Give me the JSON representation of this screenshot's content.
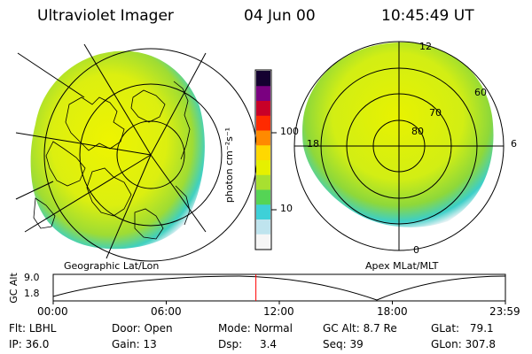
{
  "header": {
    "title": "Ultraviolet Imager",
    "date": "04 Jun 00",
    "time": "10:45:49 UT"
  },
  "colorbar": {
    "unit_label": "photon cm⁻²s⁻¹",
    "ticks": [
      "100",
      "10"
    ],
    "scale": "log",
    "colors": [
      "#f6f6f6",
      "#bfe4ee",
      "#3ed0d8",
      "#55d455",
      "#a8e030",
      "#e6f000",
      "#ffd800",
      "#ff8a00",
      "#ff2a00",
      "#c80028",
      "#7a0080",
      "#140030"
    ]
  },
  "left_panel": {
    "caption": "Geographic Lat/Lon"
  },
  "right_panel": {
    "caption": "Apex MLat/MLT",
    "lat_labels": [
      "80",
      "70",
      "60"
    ],
    "mlt_labels": [
      "12",
      "18",
      "6",
      "0"
    ]
  },
  "timeline": {
    "axis_label": "GC Alt",
    "y_ticks": [
      "9.0",
      "1.8"
    ],
    "x_ticks": [
      "00:00",
      "06:00",
      "12:00",
      "18:00",
      "23:59"
    ],
    "marker_time": "10:45",
    "marker_color": "#ff0000"
  },
  "status": {
    "filter": {
      "label": "Flt:",
      "value": "LBHL"
    },
    "ip": {
      "label": "IP:",
      "value": "36.0"
    },
    "door": {
      "label": "Door:",
      "value": "Open"
    },
    "gain": {
      "label": "Gain:",
      "value": "13"
    },
    "mode": {
      "label": "Mode:",
      "value": "Normal"
    },
    "dsp": {
      "label": "Dsp:",
      "value": "3.4"
    },
    "gc_alt": {
      "label": "GC Alt:",
      "value": "8.7 Re"
    },
    "seq": {
      "label": "Seq:",
      "value": "39"
    },
    "glat": {
      "label": "GLat:",
      "value": "79.1"
    },
    "glon": {
      "label": "GLon:",
      "value": "307.8"
    }
  }
}
